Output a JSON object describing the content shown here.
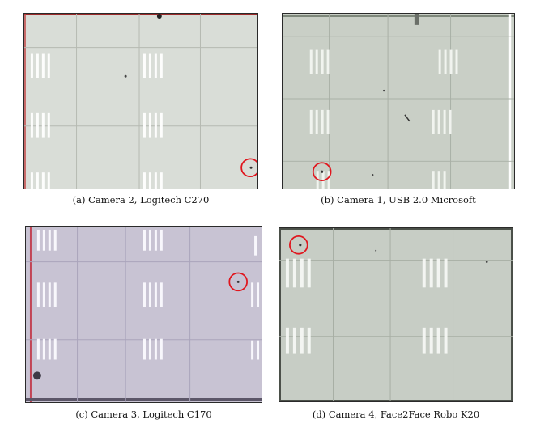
{
  "figure": {
    "panels": [
      {
        "id": "a",
        "caption": "(a) Camera 2, Logitech C270",
        "tint": "#d9ddd7",
        "edge": "#b8bcb6"
      },
      {
        "id": "b",
        "caption": "(b) Camera 1, USB 2.0 Microsoft",
        "tint": "#c9cfc6",
        "edge": "#8f9a8c"
      },
      {
        "id": "c",
        "caption": "(c) Camera 3, Logitech C170",
        "tint": "#c8c3d3",
        "edge": "#7f7a96"
      },
      {
        "id": "d",
        "caption": "(d) Camera 4, Face2Face Robo K20",
        "tint": "#c7cdc5",
        "edge": "#8e978b"
      }
    ],
    "marker_color": "#e0161e"
  }
}
